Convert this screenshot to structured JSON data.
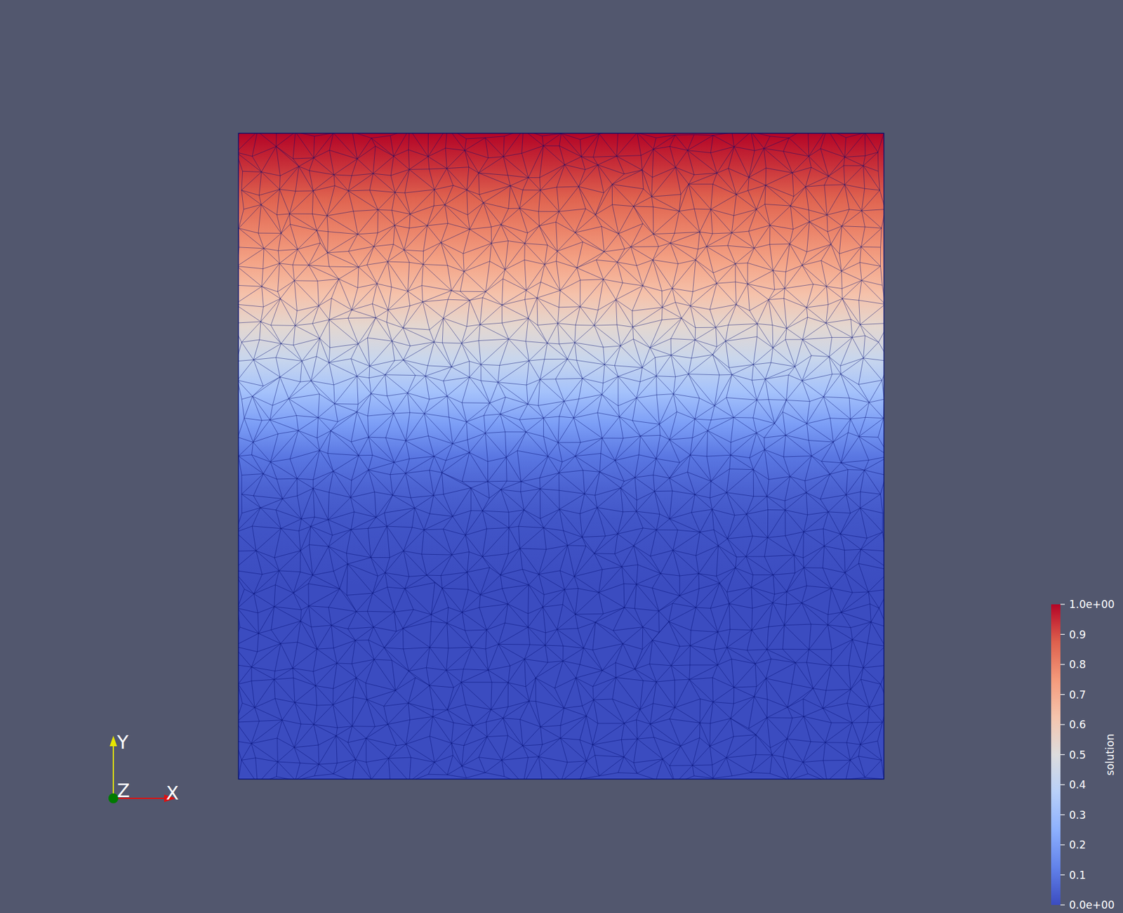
{
  "chart_data": {
    "type": "heatmap",
    "xlim": [
      0,
      1
    ],
    "ylim": [
      0,
      1
    ],
    "tick_labels": false,
    "y": [
      1.0,
      0.95,
      0.9,
      0.85,
      0.8,
      0.75,
      0.7,
      0.65,
      0.6,
      0.55,
      0.5,
      0.45,
      0.4,
      0.35,
      0.3,
      0.25,
      0.2,
      0.15,
      0.1,
      0.05,
      0.0
    ],
    "values": [
      1.0,
      0.94,
      0.87,
      0.8,
      0.72,
      0.63,
      0.53,
      0.43,
      0.32,
      0.2,
      0.1,
      0.05,
      0.02,
      0.01,
      0,
      0,
      0,
      0,
      0,
      0,
      0
    ],
    "colorbar": {
      "title": "solution",
      "range": [
        0,
        1
      ],
      "ticks": [
        {
          "value": 0,
          "label": "0.0e+00"
        },
        0.1,
        0.2,
        0.3,
        0.4,
        0.5,
        0.6,
        0.7,
        0.8,
        0.9,
        {
          "value": 1,
          "label": "1.0e+00"
        }
      ]
    },
    "triad_labels": [
      "X",
      "Y",
      "Z"
    ]
  }
}
